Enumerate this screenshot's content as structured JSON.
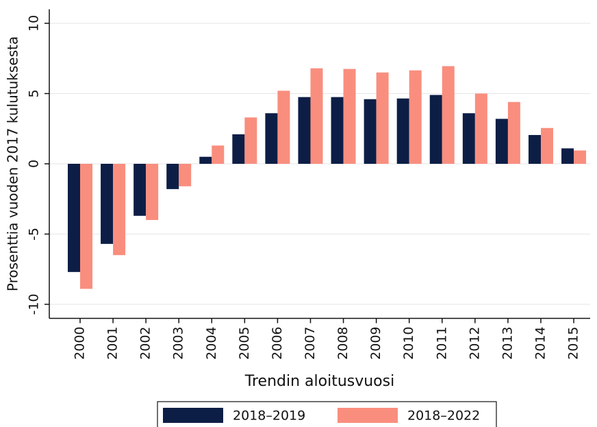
{
  "chart_data": {
    "type": "bar",
    "y_label": "Prosenttia vuoden 2017 kulutuksesta",
    "x_label": "Trendin aloitusvuosi",
    "categories": [
      "2000",
      "2001",
      "2002",
      "2003",
      "2004",
      "2005",
      "2006",
      "2007",
      "2008",
      "2009",
      "2010",
      "2011",
      "2012",
      "2013",
      "2014",
      "2015"
    ],
    "series": [
      {
        "name": "2018–2019",
        "color": "#0d1e46",
        "values": [
          -7.7,
          -5.7,
          -3.7,
          -1.8,
          0.5,
          2.1,
          3.6,
          4.75,
          4.75,
          4.6,
          4.65,
          4.9,
          3.6,
          3.2,
          2.05,
          1.1
        ]
      },
      {
        "name": "2018–2022",
        "color": "#f98e7e",
        "values": [
          -8.9,
          -6.5,
          -4.0,
          -1.6,
          1.3,
          3.3,
          5.2,
          6.8,
          6.75,
          6.5,
          6.65,
          6.95,
          5.0,
          4.4,
          2.55,
          0.95
        ]
      }
    ],
    "ylim": [
      -11,
      11
    ],
    "yticks": [
      -10,
      -5,
      0,
      5,
      10
    ],
    "grid": true,
    "legend": "bottom"
  }
}
